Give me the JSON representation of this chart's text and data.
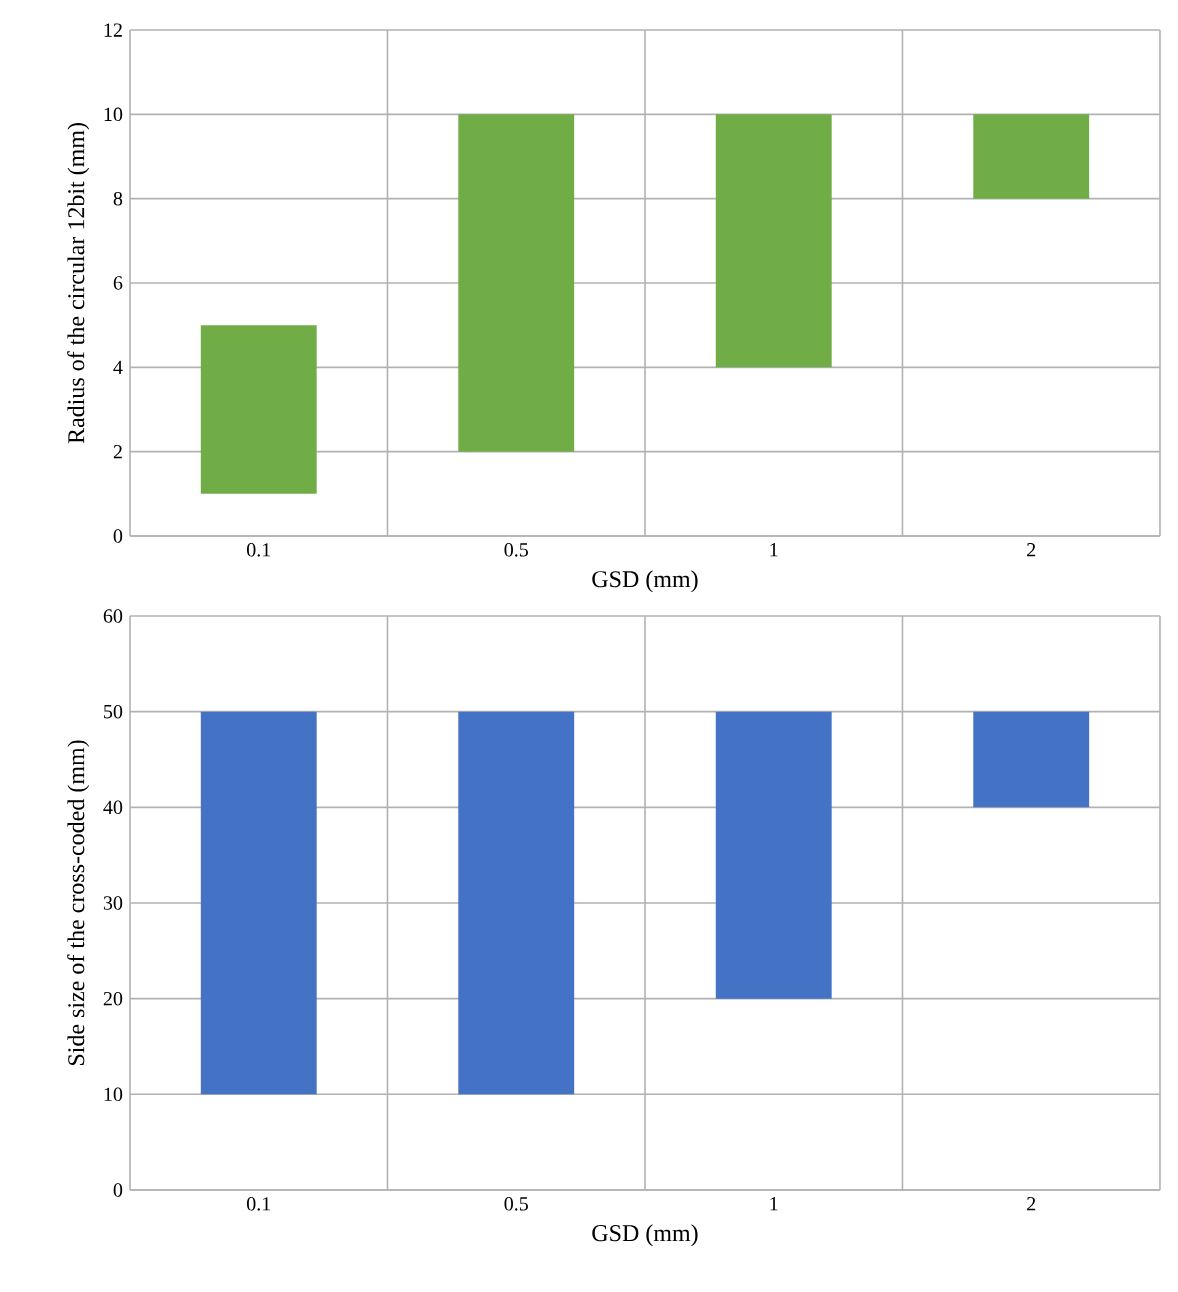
{
  "chart_data": [
    {
      "type": "bar",
      "xlabel": "GSD (mm)",
      "ylabel": "Radius of the circular 12bit (mm)",
      "categories": [
        "0.1",
        "0.5",
        "1",
        "2"
      ],
      "base": [
        1,
        2,
        4,
        8
      ],
      "values": [
        4,
        8,
        6,
        2
      ],
      "color": "#70ad47",
      "ylim": [
        0,
        12
      ],
      "yticks": [
        0,
        2,
        4,
        6,
        8,
        10,
        12
      ],
      "grid": true
    },
    {
      "type": "bar",
      "xlabel": "GSD (mm)",
      "ylabel": "Side size of the cross-coded (mm)",
      "categories": [
        "0.1",
        "0.5",
        "1",
        "2"
      ],
      "base": [
        10,
        10,
        20,
        40
      ],
      "values": [
        40,
        40,
        30,
        10
      ],
      "color": "#4472c4",
      "ylim": [
        0,
        60
      ],
      "yticks": [
        0,
        10,
        20,
        30,
        40,
        50,
        60
      ],
      "grid": true
    }
  ]
}
